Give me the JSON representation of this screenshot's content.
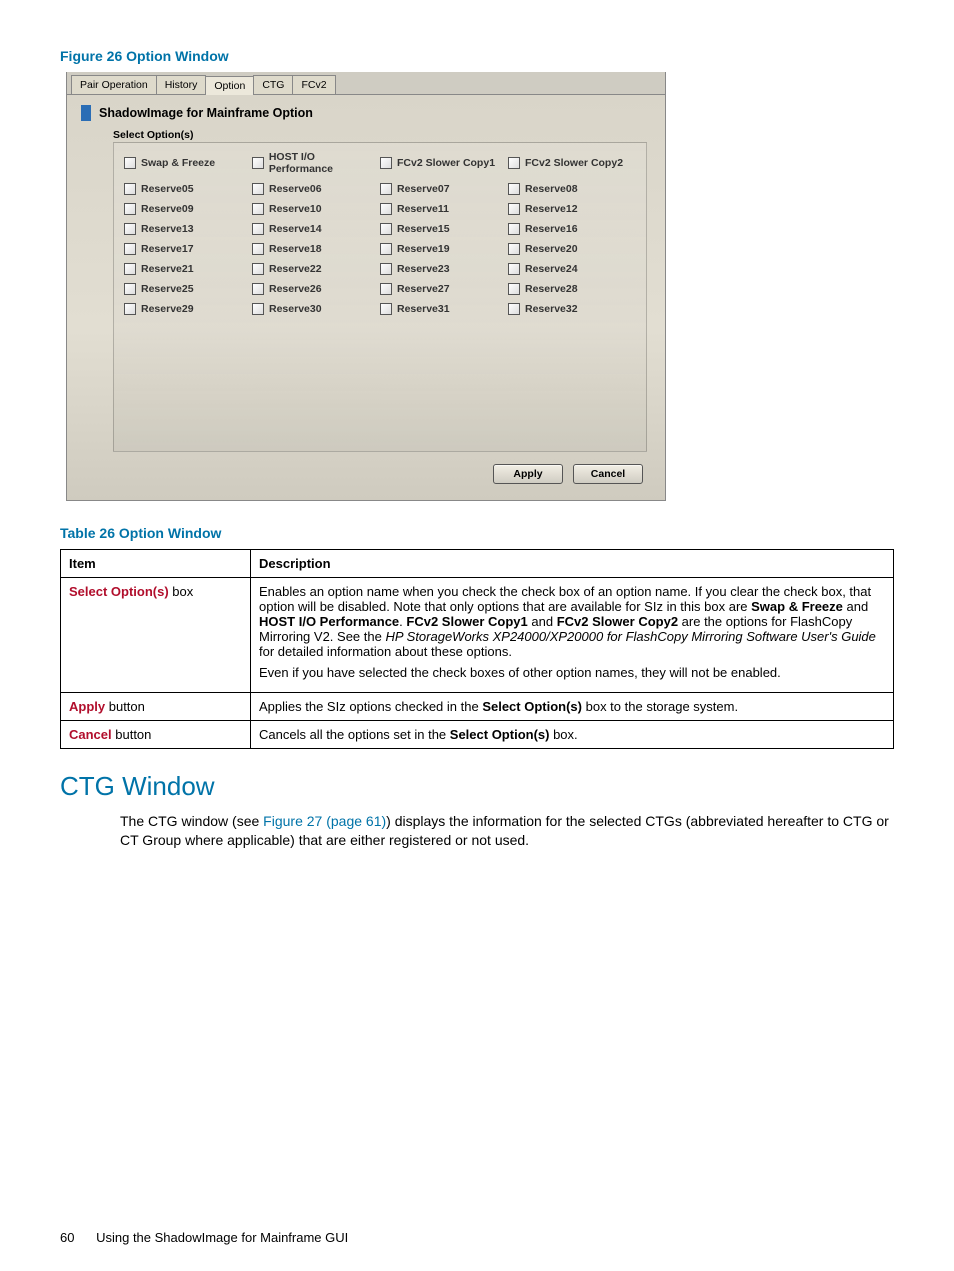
{
  "figure": {
    "label": "Figure 26 Option Window"
  },
  "screenshot": {
    "tabs": [
      "Pair Operation",
      "History",
      "Option",
      "CTG",
      "FCv2"
    ],
    "active_tab_index": 2,
    "heading": "ShadowImage for Mainframe Option",
    "select_label": "Select Option(s)",
    "options": [
      [
        "Swap & Freeze",
        "HOST I/O Performance",
        "FCv2 Slower Copy1",
        "FCv2 Slower Copy2"
      ],
      [
        "Reserve05",
        "Reserve06",
        "Reserve07",
        "Reserve08"
      ],
      [
        "Reserve09",
        "Reserve10",
        "Reserve11",
        "Reserve12"
      ],
      [
        "Reserve13",
        "Reserve14",
        "Reserve15",
        "Reserve16"
      ],
      [
        "Reserve17",
        "Reserve18",
        "Reserve19",
        "Reserve20"
      ],
      [
        "Reserve21",
        "Reserve22",
        "Reserve23",
        "Reserve24"
      ],
      [
        "Reserve25",
        "Reserve26",
        "Reserve27",
        "Reserve28"
      ],
      [
        "Reserve29",
        "Reserve30",
        "Reserve31",
        "Reserve32"
      ]
    ],
    "apply_label": "Apply",
    "cancel_label": "Cancel"
  },
  "table": {
    "title": "Table 26 Option Window",
    "headers": [
      "Item",
      "Description"
    ],
    "rows": [
      {
        "item": "Select Option(s)",
        "item_suffix": " box",
        "desc_html": "<p>Enables an option name when you check the check box of an option name. If you clear the check box, that option will be disabled. Note that only options that are available for SIz in this box are <span class='bold'>Swap &amp; Freeze</span> and <span class='bold'>HOST I/O Performance</span>. <span class='bold'>FCv2 Slower Copy1</span> and <span class='bold'>FCv2 Slower Copy2</span> are the options for FlashCopy Mirroring V2. See the <span class='italic'>HP StorageWorks XP24000/XP20000 for FlashCopy Mirroring Software User's Guide</span> for detailed information about these options.</p><p>Even if you have selected the check boxes of other option names, they will not be enabled.</p>"
      },
      {
        "item": "Apply",
        "item_suffix": " button",
        "desc_html": "Applies the SIz options checked in the <span class='bold'>Select Option(s)</span> box to the storage system."
      },
      {
        "item": "Cancel",
        "item_suffix": " button",
        "desc_html": "Cancels all the options set in the <span class='bold'>Select Option(s)</span> box."
      }
    ]
  },
  "section": {
    "heading": "CTG Window",
    "body_pre": "The CTG window (see ",
    "link": "Figure 27 (page 61)",
    "body_post": ") displays the information for the selected CTGs (abbreviated hereafter to CTG or CT Group where applicable) that are either registered or not used."
  },
  "footer": {
    "page": "60",
    "chapter": "Using the ShadowImage for Mainframe GUI"
  },
  "colors": {
    "accent": "#0073a8",
    "danger": "#b10e2c",
    "panel_bg_top": "#d8d4c8",
    "panel_bg_bottom": "#cfcbbf"
  }
}
